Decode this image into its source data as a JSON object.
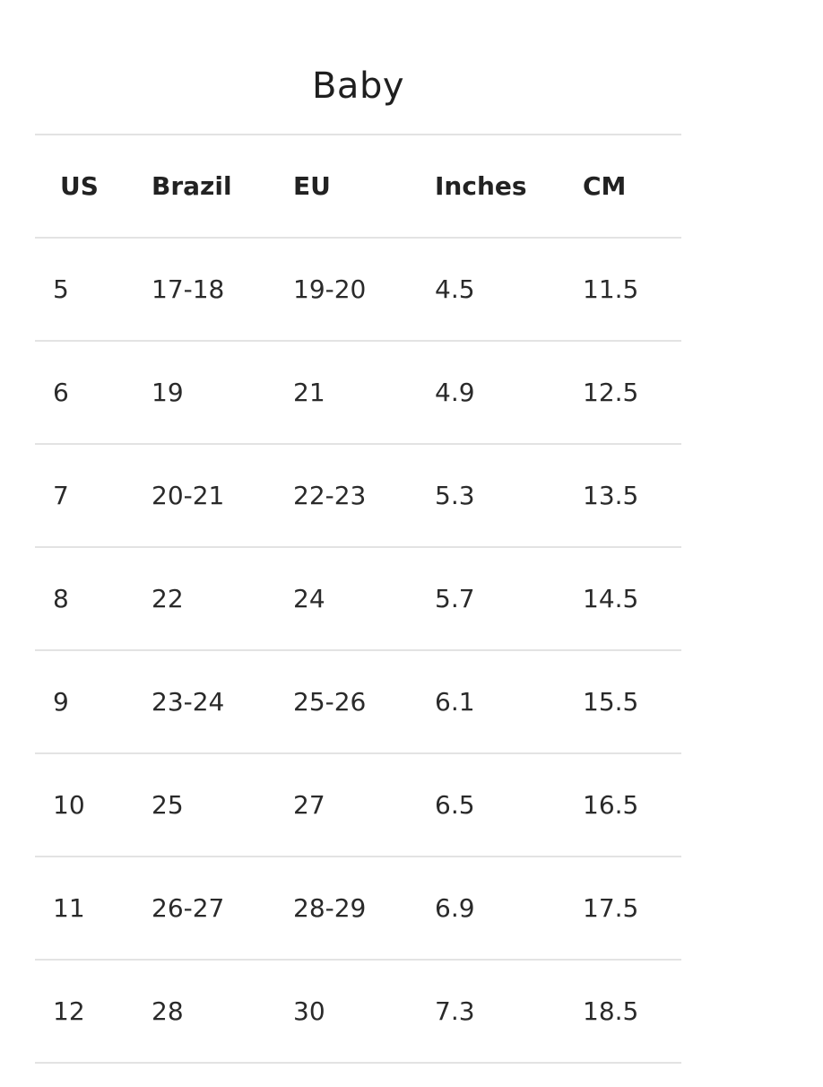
{
  "title": "Baby",
  "table": {
    "headers": [
      "US",
      "Brazil",
      "EU",
      "Inches",
      "CM"
    ],
    "rows": [
      [
        "5",
        "17-18",
        "19-20",
        "4.5",
        "11.5"
      ],
      [
        "6",
        "19",
        "21",
        "4.9",
        "12.5"
      ],
      [
        "7",
        "20-21",
        "22-23",
        "5.3",
        "13.5"
      ],
      [
        "8",
        "22",
        "24",
        "5.7",
        "14.5"
      ],
      [
        "9",
        "23-24",
        "25-26",
        "6.1",
        "15.5"
      ],
      [
        "10",
        "25",
        "27",
        "6.5",
        "16.5"
      ],
      [
        "11",
        "26-27",
        "28-29",
        "6.9",
        "17.5"
      ],
      [
        "12",
        "28",
        "30",
        "7.3",
        "18.5"
      ]
    ]
  }
}
